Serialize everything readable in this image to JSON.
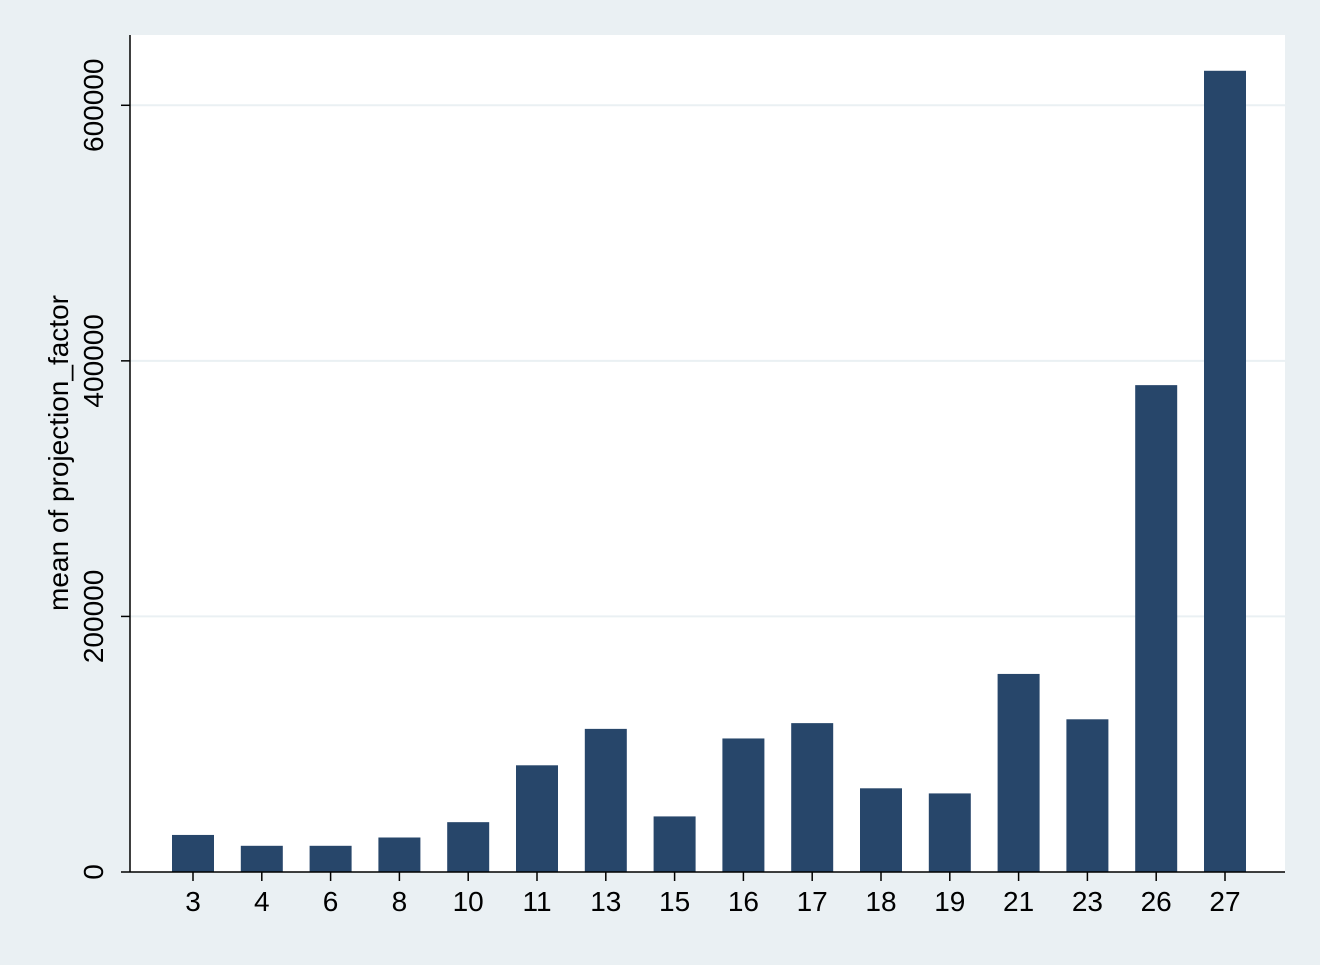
{
  "chart_data": {
    "type": "bar",
    "categories": [
      "3",
      "4",
      "6",
      "8",
      "10",
      "11",
      "13",
      "15",
      "16",
      "17",
      "18",
      "19",
      "21",
      "23",
      "26",
      "27"
    ],
    "values": [
      29000,
      20500,
      20500,
      27000,
      39000,
      83500,
      112000,
      43500,
      104500,
      116500,
      65500,
      61500,
      155000,
      119500,
      381000,
      627000
    ],
    "xlabel": "",
    "ylabel": "mean of projection_factor",
    "yticks": [
      0,
      200000,
      400000,
      600000
    ],
    "ylim": [
      0,
      655000
    ],
    "grid": true,
    "bar_color": "#27466a",
    "plot_background": "#ffffff",
    "page_background": "#eaf0f3",
    "gridline_color": "#eaf0f3"
  }
}
